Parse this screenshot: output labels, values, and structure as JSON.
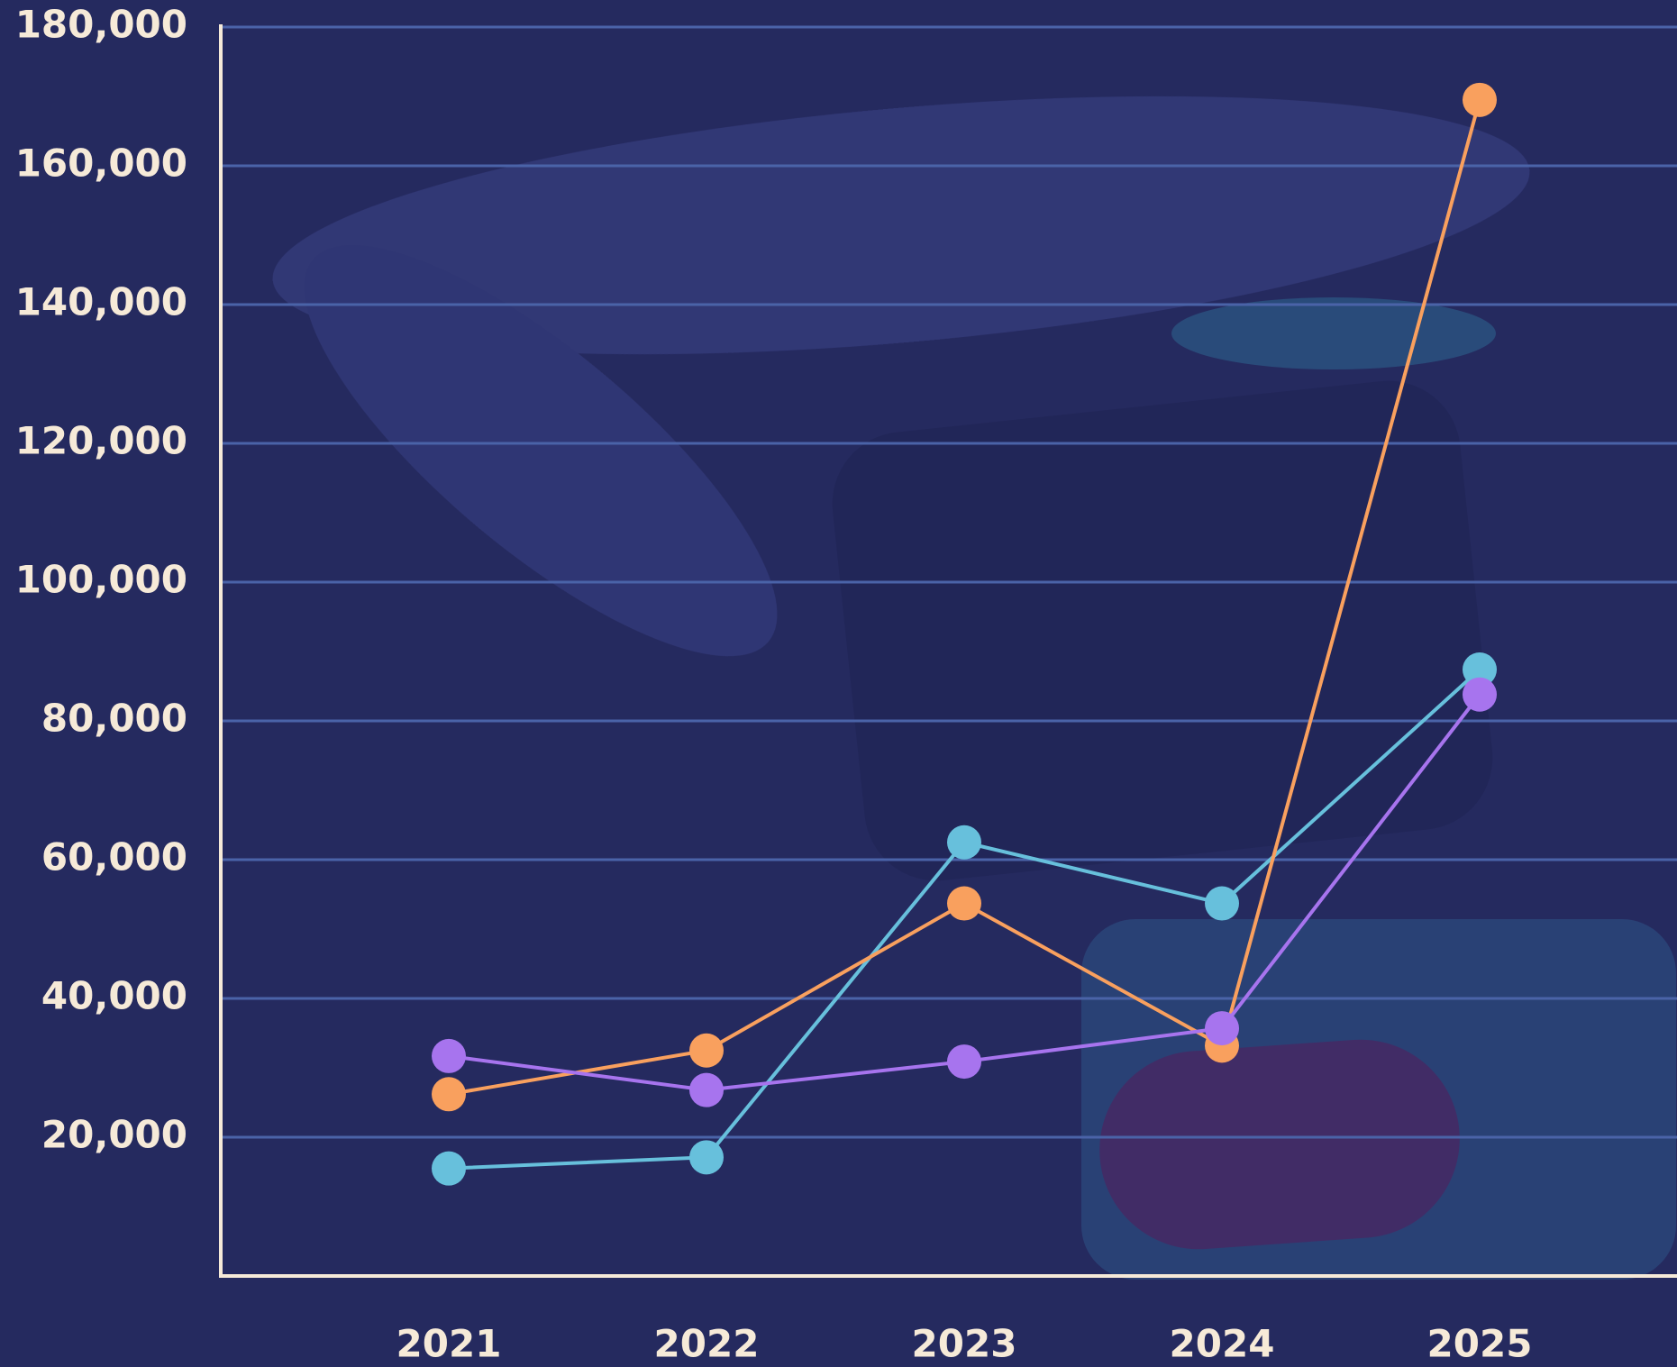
{
  "chart_data": {
    "type": "line",
    "categories": [
      "2021",
      "2022",
      "2023",
      "2024",
      "2025"
    ],
    "series": [
      {
        "color": "#67c0dc",
        "values": [
          15500,
          17100,
          62500,
          53700,
          87400
        ]
      },
      {
        "color": "#f9a05e",
        "values": [
          26200,
          32500,
          53700,
          33200,
          169500
        ]
      },
      {
        "color": "#a774ee",
        "values": [
          31700,
          26800,
          30900,
          35700,
          83800
        ]
      }
    ],
    "ylim": [
      0,
      180000
    ],
    "yticks": [
      {
        "value": 20000,
        "label": "20,000"
      },
      {
        "value": 40000,
        "label": "40,000"
      },
      {
        "value": 60000,
        "label": "60,000"
      },
      {
        "value": 80000,
        "label": "80,000"
      },
      {
        "value": 100000,
        "label": "100,000"
      },
      {
        "value": 120000,
        "label": "120,000"
      },
      {
        "value": 140000,
        "label": "140,000"
      },
      {
        "value": 160000,
        "label": "160,000"
      },
      {
        "value": 180000,
        "label": "180,000"
      }
    ],
    "grid": true
  }
}
